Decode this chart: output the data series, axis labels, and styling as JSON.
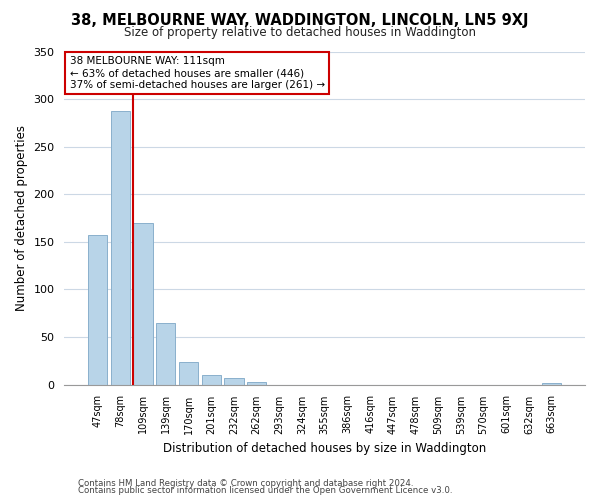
{
  "title": "38, MELBOURNE WAY, WADDINGTON, LINCOLN, LN5 9XJ",
  "subtitle": "Size of property relative to detached houses in Waddington",
  "xlabel": "Distribution of detached houses by size in Waddington",
  "ylabel": "Number of detached properties",
  "bar_labels": [
    "47sqm",
    "78sqm",
    "109sqm",
    "139sqm",
    "170sqm",
    "201sqm",
    "232sqm",
    "262sqm",
    "293sqm",
    "324sqm",
    "355sqm",
    "386sqm",
    "416sqm",
    "447sqm",
    "478sqm",
    "509sqm",
    "539sqm",
    "570sqm",
    "601sqm",
    "632sqm",
    "663sqm"
  ],
  "bar_heights": [
    157,
    287,
    170,
    65,
    24,
    10,
    7,
    3,
    0,
    0,
    0,
    0,
    0,
    0,
    0,
    0,
    0,
    0,
    0,
    0,
    2
  ],
  "bar_color": "#b8d4e8",
  "bar_edge_color": "#8ab0cc",
  "vline_color": "#cc0000",
  "vline_x_idx": 2,
  "ylim": [
    0,
    350
  ],
  "yticks": [
    0,
    50,
    100,
    150,
    200,
    250,
    300,
    350
  ],
  "annotation_title": "38 MELBOURNE WAY: 111sqm",
  "annotation_line1": "← 63% of detached houses are smaller (446)",
  "annotation_line2": "37% of semi-detached houses are larger (261) →",
  "annotation_box_color": "#ffffff",
  "annotation_box_edge": "#cc0000",
  "footer_line1": "Contains HM Land Registry data © Crown copyright and database right 2024.",
  "footer_line2": "Contains public sector information licensed under the Open Government Licence v3.0.",
  "background_color": "#ffffff",
  "grid_color": "#ccd8e5"
}
